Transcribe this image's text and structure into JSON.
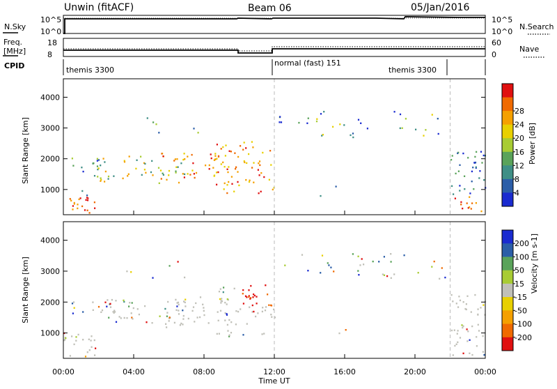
{
  "header": {
    "station": "Unwin (fitACF)",
    "beam": "Beam 06",
    "date": "05/Jan/2016"
  },
  "panels": {
    "nsky_label": "N.Sky",
    "nsearch_label": "N.Search",
    "nsky_ticks": [
      "10^5",
      "10^0"
    ],
    "nsearch_ticks": [
      "10^5",
      "10^0"
    ],
    "freq_label": "Freq.",
    "freq_unit": "[MHz]",
    "freq_ticks": [
      "18",
      "8"
    ],
    "nave_label": "Nave",
    "nave_ticks": [
      "60",
      "0"
    ],
    "cpid_label": "CPID",
    "cpid_segments": [
      "themis 3300",
      "normal (fast) 151",
      "themis 3300"
    ]
  },
  "colors": {
    "scale": [
      "#1a2bd0",
      "#2b5ea8",
      "#3f8f86",
      "#5aa35a",
      "#a8cc33",
      "#e8d000",
      "#f5a000",
      "#f06a00",
      "#e01010"
    ],
    "ground": "#c0c0b8"
  },
  "chart_data": [
    {
      "type": "heatmap",
      "title": "",
      "xlabel": "",
      "ylabel": "Slant Range [km]",
      "xlim": [
        0,
        24
      ],
      "ylim": [
        180,
        4600
      ],
      "x_ticks": [
        "00:00",
        "04:00",
        "08:00",
        "12:00",
        "16:00",
        "20:00",
        "00:00"
      ],
      "y_ticks": [
        "1000",
        "2000",
        "3000",
        "4000"
      ],
      "colorbar_label": "Power [dB]",
      "colorbar_ticks": [
        "4",
        "8",
        "12",
        "16",
        "20",
        "24",
        "28"
      ],
      "crange": [
        0,
        32
      ]
    },
    {
      "type": "heatmap",
      "title": "",
      "xlabel": "Time UT",
      "ylabel": "Slant Range [km]",
      "xlim": [
        0,
        24
      ],
      "ylim": [
        180,
        4600
      ],
      "x_ticks": [
        "00:00",
        "04:00",
        "08:00",
        "12:00",
        "16:00",
        "20:00",
        "00:00"
      ],
      "y_ticks": [
        "1000",
        "2000",
        "3000",
        "4000"
      ],
      "colorbar_label": "Velocity [m s-1]",
      "colorbar_ticks": [
        "200",
        "100",
        "50",
        "15",
        "-15",
        "-50",
        "-100",
        "-200"
      ],
      "crange": [
        -250,
        250
      ]
    }
  ]
}
